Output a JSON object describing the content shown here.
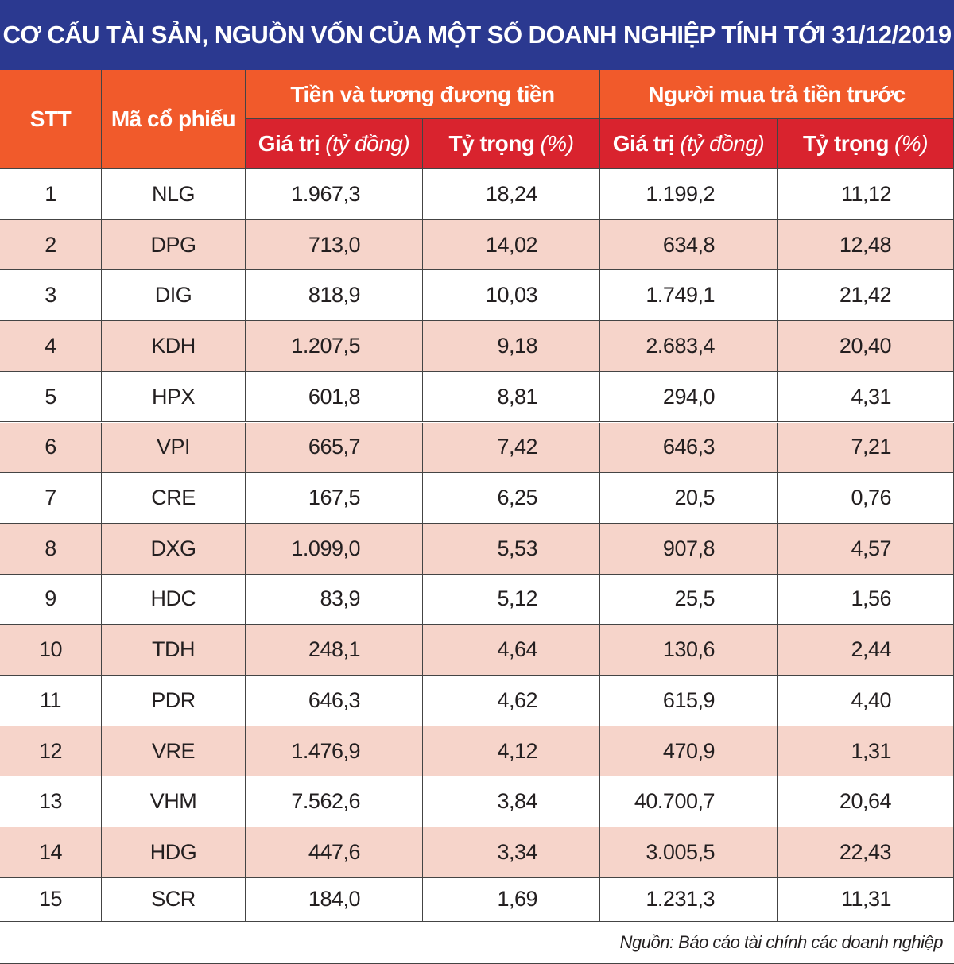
{
  "title": "CƠ CẤU TÀI SẢN, NGUỒN VỐN CỦA MỘT SỐ DOANH NGHIỆP TÍNH TỚI 31/12/2019",
  "header": {
    "stt": "STT",
    "code": "Mã cổ phiếu",
    "groups": [
      "Tiền và tương đương tiền",
      "Người mua trả tiền trước"
    ],
    "columns": [
      {
        "label": "Giá trị",
        "unit": "(tỷ đồng)"
      },
      {
        "label": "Tỷ trọng",
        "unit": "(%)"
      },
      {
        "label": "Giá trị",
        "unit": "(tỷ đồng)"
      },
      {
        "label": "Tỷ trọng",
        "unit": "(%)"
      }
    ]
  },
  "rows": [
    [
      "1",
      "NLG",
      "1.967,3",
      "18,24",
      "1.199,2",
      "11,12"
    ],
    [
      "2",
      "DPG",
      "713,0",
      "14,02",
      "634,8",
      "12,48"
    ],
    [
      "3",
      "DIG",
      "818,9",
      "10,03",
      "1.749,1",
      "21,42"
    ],
    [
      "4",
      "KDH",
      "1.207,5",
      "9,18",
      "2.683,4",
      "20,40"
    ],
    [
      "5",
      "HPX",
      "601,8",
      "8,81",
      "294,0",
      "4,31"
    ],
    [
      "6",
      "VPI",
      "665,7",
      "7,42",
      "646,3",
      "7,21"
    ],
    [
      "7",
      "CRE",
      "167,5",
      "6,25",
      "20,5",
      "0,76"
    ],
    [
      "8",
      "DXG",
      "1.099,0",
      "5,53",
      "907,8",
      "4,57"
    ],
    [
      "9",
      "HDC",
      "83,9",
      "5,12",
      "25,5",
      "1,56"
    ],
    [
      "10",
      "TDH",
      "248,1",
      "4,64",
      "130,6",
      "2,44"
    ],
    [
      "11",
      "PDR",
      "646,3",
      "4,62",
      "615,9",
      "4,40"
    ],
    [
      "12",
      "VRE",
      "1.476,9",
      "4,12",
      "470,9",
      "1,31"
    ],
    [
      "13",
      "VHM",
      "7.562,6",
      "3,84",
      "40.700,7",
      "20,64"
    ],
    [
      "14",
      "HDG",
      "447,6",
      "3,34",
      "3.005,5",
      "22,43"
    ],
    [
      "15",
      "SCR",
      "184,0",
      "1,69",
      "1.231,3",
      "11,31"
    ]
  ],
  "source": "Nguồn: Báo cáo tài chính các doanh nghiệp"
}
